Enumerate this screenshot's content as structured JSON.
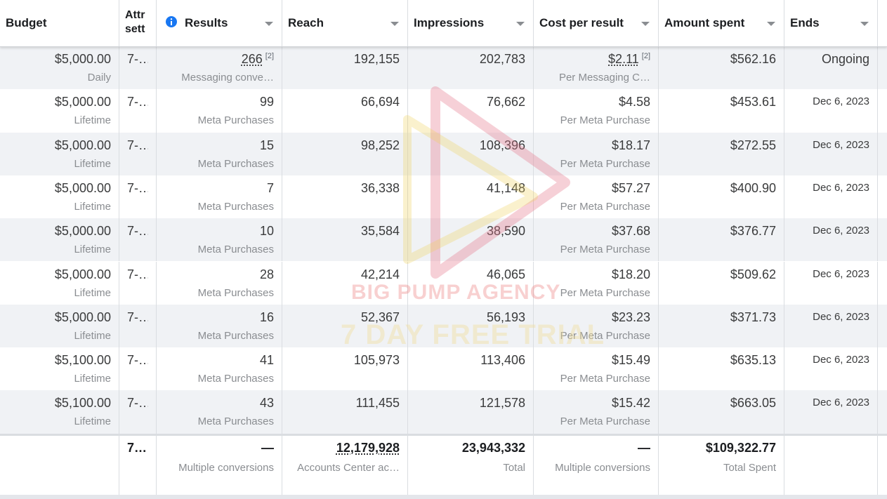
{
  "header": {
    "columns": [
      "Budget",
      "Attr sett",
      "Results",
      "Reach",
      "Impressions",
      "Cost per result",
      "Amount spent",
      "Ends"
    ]
  },
  "rows": [
    {
      "budget": "$5,000.00",
      "budget_type": "Daily",
      "attribution": "7-…",
      "results": "266",
      "results_footnote": "[2]",
      "results_type": "Messaging conve…",
      "reach": "192,155",
      "impressions": "202,783",
      "cost_per_result": "$2.11",
      "cost_footnote": "[2]",
      "cost_type": "Per Messaging C…",
      "amount_spent": "$562.16",
      "ends": "Ongoing"
    },
    {
      "budget": "$5,000.00",
      "budget_type": "Lifetime",
      "attribution": "7-…",
      "results": "99",
      "results_type": "Meta Purchases",
      "reach": "66,694",
      "impressions": "76,662",
      "cost_per_result": "$4.58",
      "cost_type": "Per Meta Purchase",
      "amount_spent": "$453.61",
      "ends": "Dec 6, 2023"
    },
    {
      "budget": "$5,000.00",
      "budget_type": "Lifetime",
      "attribution": "7-…",
      "results": "15",
      "results_type": "Meta Purchases",
      "reach": "98,252",
      "impressions": "108,396",
      "cost_per_result": "$18.17",
      "cost_type": "Per Meta Purchase",
      "amount_spent": "$272.55",
      "ends": "Dec 6, 2023"
    },
    {
      "budget": "$5,000.00",
      "budget_type": "Lifetime",
      "attribution": "7-…",
      "results": "7",
      "results_type": "Meta Purchases",
      "reach": "36,338",
      "impressions": "41,148",
      "cost_per_result": "$57.27",
      "cost_type": "Per Meta Purchase",
      "amount_spent": "$400.90",
      "ends": "Dec 6, 2023"
    },
    {
      "budget": "$5,000.00",
      "budget_type": "Lifetime",
      "attribution": "7-…",
      "results": "10",
      "results_type": "Meta Purchases",
      "reach": "35,584",
      "impressions": "38,590",
      "cost_per_result": "$37.68",
      "cost_type": "Per Meta Purchase",
      "amount_spent": "$376.77",
      "ends": "Dec 6, 2023"
    },
    {
      "budget": "$5,000.00",
      "budget_type": "Lifetime",
      "attribution": "7-…",
      "results": "28",
      "results_type": "Meta Purchases",
      "reach": "42,214",
      "impressions": "46,065",
      "cost_per_result": "$18.20",
      "cost_type": "Per Meta Purchase",
      "amount_spent": "$509.62",
      "ends": "Dec 6, 2023"
    },
    {
      "budget": "$5,000.00",
      "budget_type": "Lifetime",
      "attribution": "7-…",
      "results": "16",
      "results_type": "Meta Purchases",
      "reach": "52,367",
      "impressions": "56,193",
      "cost_per_result": "$23.23",
      "cost_type": "Per Meta Purchase",
      "amount_spent": "$371.73",
      "ends": "Dec 6, 2023"
    },
    {
      "budget": "$5,100.00",
      "budget_type": "Lifetime",
      "attribution": "7-…",
      "results": "41",
      "results_type": "Meta Purchases",
      "reach": "105,973",
      "impressions": "113,406",
      "cost_per_result": "$15.49",
      "cost_type": "Per Meta Purchase",
      "amount_spent": "$635.13",
      "ends": "Dec 6, 2023"
    },
    {
      "budget": "$5,100.00",
      "budget_type": "Lifetime",
      "attribution": "7-…",
      "results": "43",
      "results_type": "Meta Purchases",
      "reach": "111,455",
      "impressions": "121,578",
      "cost_per_result": "$15.42",
      "cost_type": "Per Meta Purchase",
      "amount_spent": "$663.05",
      "ends": "Dec 6, 2023"
    }
  ],
  "totals": {
    "attribution": "7…",
    "results": "—",
    "results_type": "Multiple conversions",
    "reach": "12,179,928",
    "reach_type": "Accounts Center ac…",
    "impressions": "23,943,332",
    "impressions_type": "Total",
    "cost_per_result": "—",
    "cost_type": "Multiple conversions",
    "amount_spent": "$109,322.77",
    "amount_type": "Total Spent"
  },
  "watermark": {
    "agency": "BIG PUMP AGENCY",
    "trial": "7 DAY FREE TRIAL"
  }
}
